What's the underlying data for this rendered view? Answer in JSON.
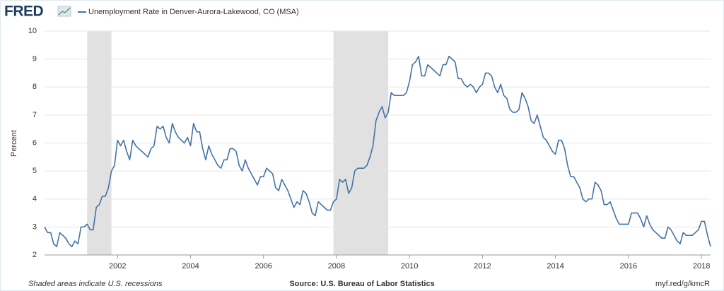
{
  "chart_data": {
    "type": "line",
    "logo": "FRED",
    "ylabel": "Percent",
    "note": "Shaded areas indicate U.S. recessions",
    "source": "Source: U.S. Bureau of Labor Statistics",
    "link": "myf.red/g/kmcR",
    "xlim": [
      2000,
      2018.25
    ],
    "xticks": [
      2002,
      2004,
      2006,
      2008,
      2010,
      2012,
      2014,
      2016,
      2018
    ],
    "ylim": [
      2,
      10
    ],
    "yticks": [
      2,
      3,
      4,
      5,
      6,
      7,
      8,
      9,
      10
    ],
    "grid": true,
    "recessions": [
      [
        2001.167,
        2001.833
      ],
      [
        2007.917,
        2009.417
      ]
    ],
    "x": [
      2000,
      2000.083,
      2000.167,
      2000.25,
      2000.333,
      2000.417,
      2000.5,
      2000.583,
      2000.667,
      2000.75,
      2000.833,
      2000.917,
      2001,
      2001.083,
      2001.167,
      2001.25,
      2001.333,
      2001.417,
      2001.5,
      2001.583,
      2001.667,
      2001.75,
      2001.833,
      2001.917,
      2002,
      2002.083,
      2002.167,
      2002.25,
      2002.333,
      2002.417,
      2002.5,
      2002.583,
      2002.667,
      2002.75,
      2002.833,
      2002.917,
      2003,
      2003.083,
      2003.167,
      2003.25,
      2003.333,
      2003.417,
      2003.5,
      2003.583,
      2003.667,
      2003.75,
      2003.833,
      2003.917,
      2004,
      2004.083,
      2004.167,
      2004.25,
      2004.333,
      2004.417,
      2004.5,
      2004.583,
      2004.667,
      2004.75,
      2004.833,
      2004.917,
      2005,
      2005.083,
      2005.167,
      2005.25,
      2005.333,
      2005.417,
      2005.5,
      2005.583,
      2005.667,
      2005.75,
      2005.833,
      2005.917,
      2006,
      2006.083,
      2006.167,
      2006.25,
      2006.333,
      2006.417,
      2006.5,
      2006.583,
      2006.667,
      2006.75,
      2006.833,
      2006.917,
      2007,
      2007.083,
      2007.167,
      2007.25,
      2007.333,
      2007.417,
      2007.5,
      2007.583,
      2007.667,
      2007.75,
      2007.833,
      2007.917,
      2008,
      2008.083,
      2008.167,
      2008.25,
      2008.333,
      2008.417,
      2008.5,
      2008.583,
      2008.667,
      2008.75,
      2008.833,
      2008.917,
      2009,
      2009.083,
      2009.167,
      2009.25,
      2009.333,
      2009.417,
      2009.5,
      2009.583,
      2009.667,
      2009.75,
      2009.833,
      2009.917,
      2010,
      2010.083,
      2010.167,
      2010.25,
      2010.333,
      2010.417,
      2010.5,
      2010.583,
      2010.667,
      2010.75,
      2010.833,
      2010.917,
      2011,
      2011.083,
      2011.167,
      2011.25,
      2011.333,
      2011.417,
      2011.5,
      2011.583,
      2011.667,
      2011.75,
      2011.833,
      2011.917,
      2012,
      2012.083,
      2012.167,
      2012.25,
      2012.333,
      2012.417,
      2012.5,
      2012.583,
      2012.667,
      2012.75,
      2012.833,
      2012.917,
      2013,
      2013.083,
      2013.167,
      2013.25,
      2013.333,
      2013.417,
      2013.5,
      2013.583,
      2013.667,
      2013.75,
      2013.833,
      2013.917,
      2014,
      2014.083,
      2014.167,
      2014.25,
      2014.333,
      2014.417,
      2014.5,
      2014.583,
      2014.667,
      2014.75,
      2014.833,
      2014.917,
      2015,
      2015.083,
      2015.167,
      2015.25,
      2015.333,
      2015.417,
      2015.5,
      2015.583,
      2015.667,
      2015.75,
      2015.833,
      2015.917,
      2016,
      2016.083,
      2016.167,
      2016.25,
      2016.333,
      2016.417,
      2016.5,
      2016.583,
      2016.667,
      2016.75,
      2016.833,
      2016.917,
      2017,
      2017.083,
      2017.167,
      2017.25,
      2017.333,
      2017.417,
      2017.5,
      2017.583,
      2017.667,
      2017.75,
      2017.833,
      2017.917,
      2018,
      2018.083,
      2018.167,
      2018.25
    ],
    "series": [
      {
        "name": "Unemployment Rate in Denver-Aurora-Lakewood, CO (MSA)",
        "color": "#4572a7",
        "values": [
          3.0,
          2.8,
          2.8,
          2.4,
          2.3,
          2.8,
          2.7,
          2.6,
          2.4,
          2.3,
          2.5,
          2.4,
          3.0,
          3.0,
          3.1,
          2.9,
          2.9,
          3.7,
          3.8,
          4.1,
          4.1,
          4.4,
          5.0,
          5.2,
          6.1,
          5.9,
          6.1,
          5.7,
          5.4,
          6.1,
          5.9,
          5.8,
          5.7,
          5.6,
          5.5,
          5.8,
          5.9,
          6.6,
          6.5,
          6.6,
          6.2,
          6.0,
          6.7,
          6.4,
          6.2,
          6.1,
          6.0,
          6.2,
          5.9,
          6.7,
          6.4,
          6.4,
          5.8,
          5.4,
          5.9,
          5.6,
          5.4,
          5.2,
          5.1,
          5.4,
          5.4,
          5.8,
          5.8,
          5.7,
          5.2,
          5.0,
          5.4,
          5.1,
          4.9,
          4.7,
          4.5,
          4.8,
          4.8,
          5.1,
          5.0,
          4.9,
          4.4,
          4.3,
          4.7,
          4.5,
          4.3,
          4.0,
          3.7,
          3.9,
          3.8,
          4.3,
          4.2,
          3.9,
          3.5,
          3.4,
          3.9,
          3.8,
          3.7,
          3.6,
          3.6,
          3.9,
          4.0,
          4.7,
          4.6,
          4.7,
          4.2,
          4.4,
          5.0,
          5.1,
          5.1,
          5.1,
          5.2,
          5.5,
          5.9,
          6.8,
          7.1,
          7.3,
          6.9,
          7.1,
          7.8,
          7.7,
          7.7,
          7.7,
          7.7,
          7.8,
          8.2,
          8.8,
          8.9,
          9.1,
          8.4,
          8.4,
          8.8,
          8.7,
          8.6,
          8.5,
          8.4,
          8.8,
          8.8,
          9.1,
          9.0,
          8.9,
          8.3,
          8.3,
          8.1,
          8.0,
          8.1,
          8.0,
          7.8,
          8.0,
          8.1,
          8.5,
          8.5,
          8.4,
          8.0,
          7.8,
          8.1,
          7.7,
          7.6,
          7.2,
          7.1,
          7.1,
          7.2,
          7.8,
          7.6,
          7.3,
          6.8,
          6.7,
          7.0,
          6.6,
          6.2,
          6.1,
          5.9,
          5.7,
          5.6,
          6.1,
          6.1,
          5.8,
          5.2,
          4.8,
          4.8,
          4.6,
          4.4,
          4.0,
          3.9,
          4.0,
          4.0,
          4.6,
          4.5,
          4.3,
          3.8,
          3.8,
          3.9,
          3.6,
          3.3,
          3.1,
          3.1,
          3.1,
          3.1,
          3.5,
          3.5,
          3.5,
          3.3,
          3.0,
          3.4,
          3.1,
          2.9,
          2.8,
          2.7,
          2.6,
          2.6,
          3.0,
          2.9,
          2.7,
          2.5,
          2.4,
          2.8,
          2.7,
          2.7,
          2.7,
          2.8,
          2.9,
          3.2,
          3.2,
          2.7,
          2.3
        ]
      }
    ]
  }
}
